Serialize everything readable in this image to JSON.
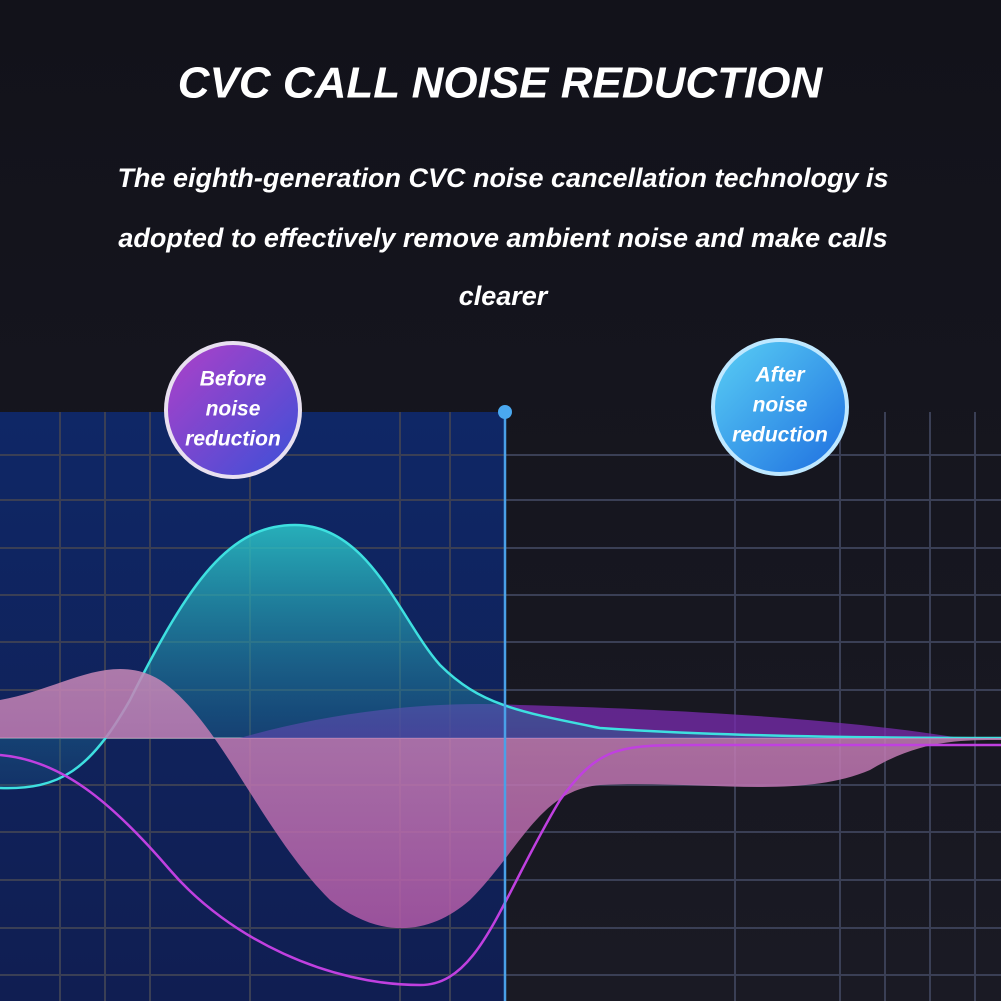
{
  "header": {
    "title": "CVC CALL NOISE REDUCTION",
    "description": [
      "The eighth-generation CVC noise cancellation technology is",
      "adopted to effectively remove ambient noise and make calls",
      "clearer"
    ]
  },
  "badges": [
    {
      "lines": [
        "Before",
        "noise",
        "reduction"
      ]
    },
    {
      "lines": [
        "After",
        "noise",
        "reduction"
      ]
    }
  ]
}
